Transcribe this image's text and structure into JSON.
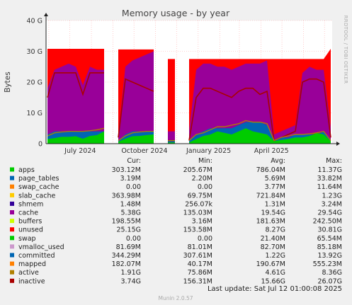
{
  "chart_data": {
    "type": "area",
    "title": "Memory usage - by year",
    "ylabel": "Bytes",
    "ylim": [
      0,
      40
    ],
    "y_unit": "G",
    "yticks": [
      "0",
      "10 G",
      "20 G",
      "30 G",
      "40 G"
    ],
    "xtick_labels": [
      "July 2024",
      "October 2024",
      "January 2025",
      "April 2025"
    ],
    "x_range": [
      "2024-05-28",
      "2025-07-12"
    ],
    "grid": true,
    "legend_placement": "bottom",
    "series_colors": {
      "apps": "#00cc00",
      "page_tables": "#0066b3",
      "swap_cache": "#ff8000",
      "slab_cache": "#ffcc00",
      "shmem": "#330099",
      "cache": "#990099",
      "buffers": "#ccff00",
      "unused": "#ff0000",
      "swap": "#00cc00",
      "vmalloc_used": "#cc99cc",
      "committed": "#0066b3",
      "mapped": "#ff8000",
      "active": "#b08000",
      "inactive": "#aa0000"
    },
    "series": [
      {
        "name": "unused",
        "values": [
          30.8,
          30.8,
          30.8,
          30.8,
          30.8,
          30.8,
          30.8,
          30.8,
          30.8,
          0,
          30.6,
          30.6,
          30.6,
          30.6,
          30.6,
          30.6,
          0,
          27.5,
          27.5,
          0,
          27.5,
          27.5,
          27.5,
          27.5,
          27.5,
          27.5,
          27.5,
          27.5,
          27.5,
          27.5,
          27.5,
          27.5,
          27.5,
          27.5,
          27.5,
          27.5,
          27.5,
          27.5,
          27.5,
          27.5,
          30.8
        ]
      },
      {
        "name": "cache",
        "values": [
          18,
          24,
          25,
          26,
          25,
          19,
          25,
          24,
          24,
          0,
          3,
          25,
          27,
          28,
          29,
          30,
          0,
          4,
          4,
          0,
          4,
          24,
          26,
          26,
          25,
          25,
          24,
          25,
          26,
          26,
          26,
          27,
          3,
          4,
          5,
          6,
          23,
          25,
          24,
          24,
          5
        ]
      },
      {
        "name": "inactive",
        "values": [
          15,
          23,
          23,
          23,
          23,
          16,
          23,
          23,
          23,
          0,
          2,
          21,
          20,
          19,
          18,
          17,
          0,
          1,
          1,
          0,
          1,
          15,
          18,
          18,
          17,
          16,
          15,
          17,
          18,
          18,
          16,
          17,
          1,
          2,
          3,
          4,
          20,
          21,
          21,
          20,
          2
        ]
      },
      {
        "name": "committed",
        "values": [
          3,
          4,
          4,
          4,
          4,
          4,
          4,
          4,
          4,
          0,
          1,
          3,
          4,
          4,
          4,
          4,
          0,
          1,
          1,
          0,
          1,
          3,
          4,
          5,
          5,
          5,
          5,
          6,
          7,
          7,
          7,
          6,
          1,
          2,
          2,
          3,
          3,
          3,
          3,
          4,
          1
        ]
      },
      {
        "name": "active",
        "values": [
          2.5,
          3.5,
          3.8,
          4,
          4,
          4,
          4.2,
          4.5,
          5,
          0,
          1,
          2.5,
          3.5,
          3.8,
          4,
          4,
          0,
          1,
          1,
          0,
          1,
          3,
          3.5,
          4.5,
          5.5,
          5.5,
          6,
          6.5,
          7.5,
          7,
          7,
          6.5,
          1,
          2,
          2.5,
          3,
          3,
          3.2,
          3.5,
          4,
          1
        ]
      },
      {
        "name": "apps",
        "values": [
          1.5,
          1.8,
          2.2,
          2.2,
          2.4,
          1.6,
          2.5,
          2.8,
          4,
          0,
          0.6,
          1.6,
          2.4,
          2.5,
          2.8,
          3,
          0,
          0.4,
          0.4,
          0,
          0.4,
          1.5,
          2.5,
          3,
          4,
          3.5,
          3,
          4,
          5,
          4,
          3.5,
          3,
          0.8,
          1.2,
          1.5,
          2,
          2,
          2.5,
          3.5,
          3,
          0.8
        ]
      }
    ],
    "legend": [
      {
        "name": "apps",
        "cur": "303.12M",
        "min": "205.67M",
        "avg": "786.04M",
        "max": "11.37G"
      },
      {
        "name": "page_tables",
        "cur": "3.19M",
        "min": "2.20M",
        "avg": "5.69M",
        "max": "33.82M"
      },
      {
        "name": "swap_cache",
        "cur": "0.00",
        "min": "0.00",
        "avg": "3.77M",
        "max": "11.64M"
      },
      {
        "name": "slab_cache",
        "cur": "363.98M",
        "min": "69.75M",
        "avg": "721.84M",
        "max": "1.23G"
      },
      {
        "name": "shmem",
        "cur": "1.48M",
        "min": "256.07k",
        "avg": "1.31M",
        "max": "3.24M"
      },
      {
        "name": "cache",
        "cur": "5.38G",
        "min": "135.03M",
        "avg": "19.54G",
        "max": "29.54G"
      },
      {
        "name": "buffers",
        "cur": "198.55M",
        "min": "3.16M",
        "avg": "181.63M",
        "max": "242.50M"
      },
      {
        "name": "unused",
        "cur": "25.15G",
        "min": "153.58M",
        "avg": "8.27G",
        "max": "30.81G"
      },
      {
        "name": "swap",
        "cur": "0.00",
        "min": "0.00",
        "avg": "21.40M",
        "max": "65.54M"
      },
      {
        "name": "vmalloc_used",
        "cur": "81.69M",
        "min": "81.01M",
        "avg": "82.70M",
        "max": "85.18M"
      },
      {
        "name": "committed",
        "cur": "344.29M",
        "min": "307.61M",
        "avg": "1.22G",
        "max": "13.92G"
      },
      {
        "name": "mapped",
        "cur": "182.07M",
        "min": "40.17M",
        "avg": "190.67M",
        "max": "555.23M"
      },
      {
        "name": "active",
        "cur": "1.91G",
        "min": "75.86M",
        "avg": "4.61G",
        "max": "8.36G"
      },
      {
        "name": "inactive",
        "cur": "3.74G",
        "min": "156.31M",
        "avg": "15.66G",
        "max": "26.07G"
      }
    ],
    "legend_headers": [
      "Cur:",
      "Min:",
      "Avg:",
      "Max:"
    ]
  },
  "side_text": "RRDTOOL / TOBI OETIKER",
  "footer": "Last update: Sat Jul 12 01:00:08 2025",
  "munin_version": "Munin 2.0.57"
}
